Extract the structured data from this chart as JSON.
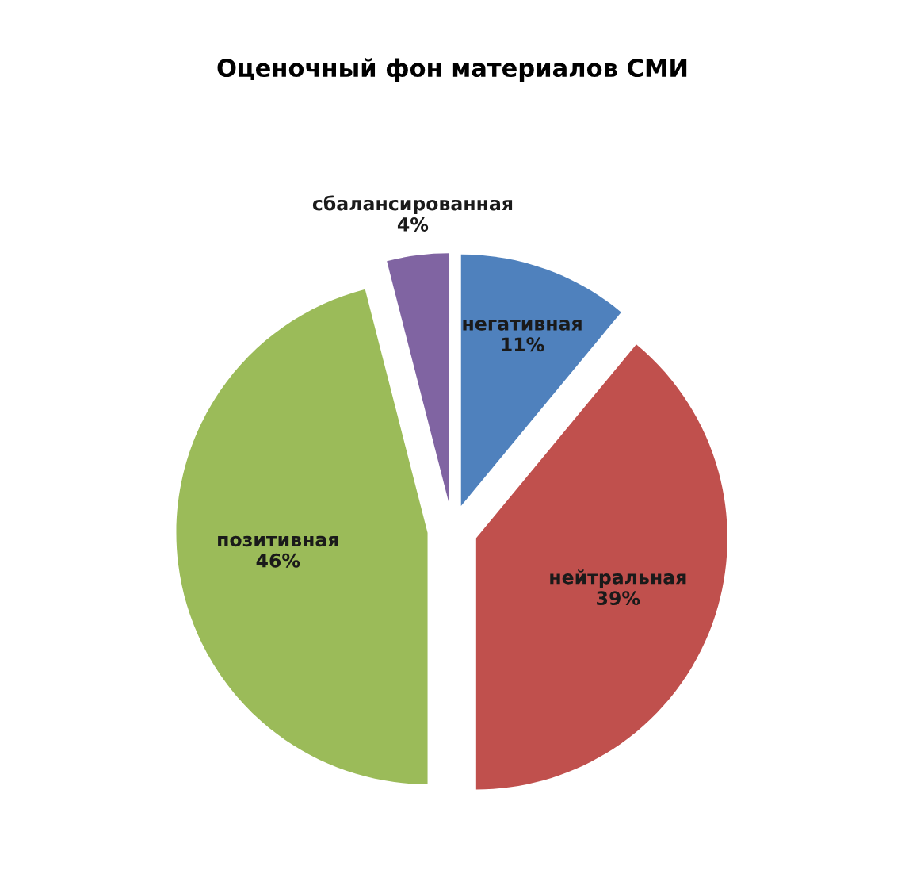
{
  "chart_data": {
    "type": "pie",
    "title": "Оценочный фон материалов СМИ",
    "categories": [
      "негативная",
      "нейтральная",
      "позитивная",
      "сбалансированная"
    ],
    "values": [
      11,
      39,
      46,
      4
    ],
    "value_labels": [
      "11%",
      "39%",
      "46%",
      "4%"
    ],
    "colors": [
      "#4f81bd",
      "#c0504d",
      "#9bbb59",
      "#8064a2"
    ],
    "legend": false
  }
}
